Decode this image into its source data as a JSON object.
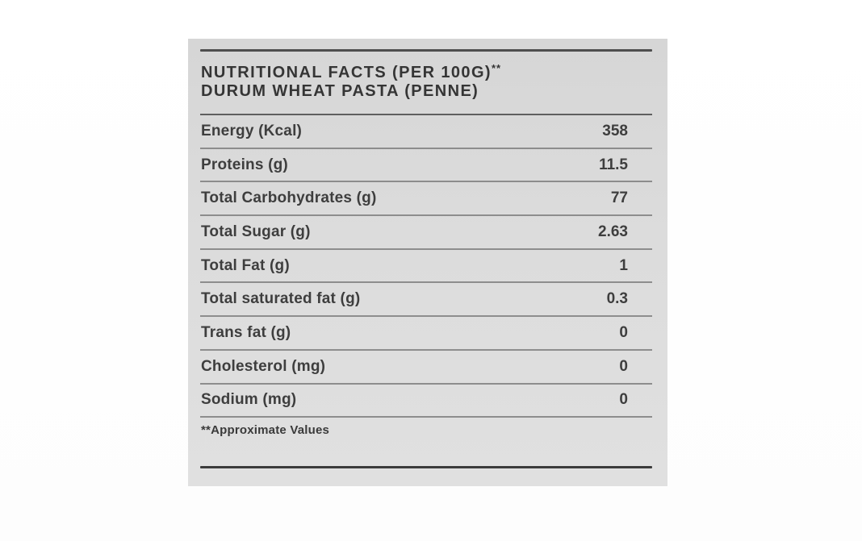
{
  "label_card": {
    "header": {
      "title_line1": "NUTRITIONAL FACTS (PER 100G)",
      "title_superscript": "**",
      "title_line2": "DURUM WHEAT PASTA (PENNE)"
    },
    "table": {
      "rows": [
        {
          "label": "Energy (Kcal)",
          "value": "358"
        },
        {
          "label": "Proteins (g)",
          "value": "11.5"
        },
        {
          "label": "Total Carbohydrates (g)",
          "value": "77"
        },
        {
          "label": "Total Sugar (g)",
          "value": "2.63"
        },
        {
          "label": "Total Fat (g)",
          "value": "1"
        },
        {
          "label": "Total saturated fat (g)",
          "value": "0.3"
        },
        {
          "label": "Trans fat (g)",
          "value": "0"
        },
        {
          "label": "Cholesterol (mg)",
          "value": "0"
        },
        {
          "label": "Sodium (mg)",
          "value": "0"
        }
      ]
    },
    "footnote": "**Approximate Values",
    "colors": {
      "card_background": "#dcdcdc",
      "text": "#3e3e3e",
      "rule_dark": "#4e4e4e",
      "rule_light": "#8d8d8d"
    }
  }
}
